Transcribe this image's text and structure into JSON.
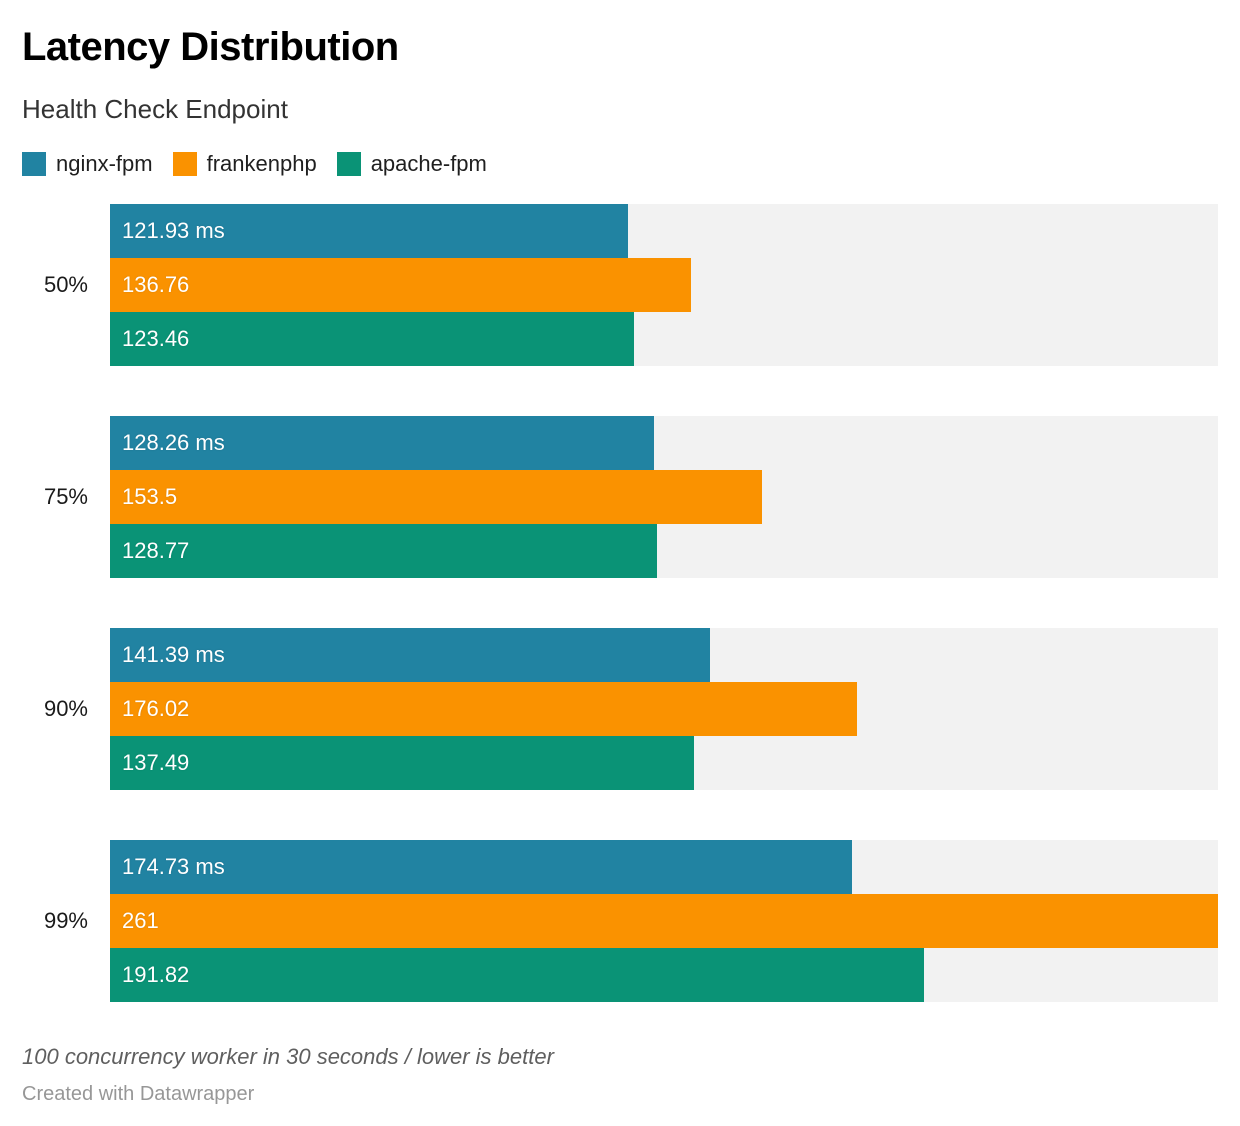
{
  "header": {
    "title": "Latency Distribution",
    "subtitle": "Health Check Endpoint"
  },
  "legend": [
    {
      "label": "nginx-fpm",
      "color": "#2183a2"
    },
    {
      "label": "frankenphp",
      "color": "#fa9200"
    },
    {
      "label": "apache-fpm",
      "color": "#0a9376"
    }
  ],
  "chart_data": {
    "type": "bar",
    "orientation": "horizontal",
    "title": "Latency Distribution",
    "subtitle": "Health Check Endpoint",
    "categories": [
      "50%",
      "75%",
      "90%",
      "99%"
    ],
    "series": [
      {
        "name": "nginx-fpm",
        "color": "#2183a2",
        "values": [
          121.93,
          128.26,
          141.39,
          174.73
        ],
        "display": [
          "121.93 ms",
          "128.26 ms",
          "141.39 ms",
          "174.73 ms"
        ]
      },
      {
        "name": "frankenphp",
        "color": "#fa9200",
        "values": [
          136.76,
          153.5,
          176.02,
          261
        ],
        "display": [
          "136.76",
          "153.5",
          "176.02",
          "261"
        ]
      },
      {
        "name": "apache-fpm",
        "color": "#0a9376",
        "values": [
          123.46,
          128.77,
          137.49,
          191.82
        ],
        "display": [
          "123.46",
          "128.77",
          "137.49",
          "191.82"
        ]
      }
    ],
    "xlim": [
      0,
      261
    ],
    "value_unit": "ms",
    "track_color": "#f2f2f2",
    "grid": false,
    "legend_position": "top"
  },
  "footer": {
    "note": "100 concurrency worker in 30 seconds / lower is better",
    "attribution": "Created with Datawrapper"
  }
}
